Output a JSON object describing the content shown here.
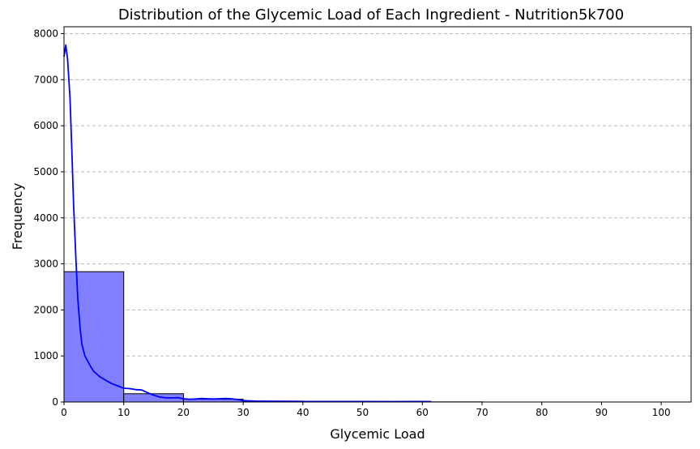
{
  "chart_data": {
    "type": "bar",
    "title": "Distribution of the Glycemic Load of Each Ingredient - Nutrition5k700",
    "xlabel": "Glycemic Load",
    "ylabel": "Frequency",
    "xlim": [
      0,
      105
    ],
    "ylim": [
      0,
      8150
    ],
    "x_ticks": [
      0,
      10,
      20,
      30,
      40,
      50,
      60,
      70,
      80,
      90,
      100
    ],
    "y_ticks": [
      0,
      1000,
      2000,
      3000,
      4000,
      5000,
      6000,
      7000,
      8000
    ],
    "grid": "y-dashed",
    "bins": [
      {
        "x0": 0,
        "x1": 10,
        "value": 2830
      },
      {
        "x0": 10,
        "x1": 20,
        "value": 180
      },
      {
        "x0": 20,
        "x1": 30,
        "value": 60
      },
      {
        "x0": 30,
        "x1": 40,
        "value": 20
      },
      {
        "x0": 40,
        "x1": 50,
        "value": 8
      },
      {
        "x0": 50,
        "x1": 60,
        "value": 5
      },
      {
        "x0": 60,
        "x1": 70,
        "value": 3
      }
    ],
    "kde": {
      "x": [
        0,
        0.3,
        0.6,
        1.0,
        1.3,
        1.6,
        2.0,
        2.3,
        2.7,
        3.0,
        3.5,
        4,
        4.5,
        5,
        6,
        7,
        8,
        9,
        10,
        11,
        12,
        13,
        14,
        15,
        16,
        17,
        18,
        19,
        20,
        21,
        22,
        23,
        24,
        25,
        26,
        27,
        28,
        29,
        30,
        32,
        35,
        40,
        45,
        50,
        55,
        60,
        61.5
      ],
      "y": [
        7500,
        7750,
        7450,
        6600,
        5500,
        4300,
        3100,
        2250,
        1600,
        1250,
        1000,
        880,
        760,
        660,
        550,
        470,
        400,
        350,
        300,
        290,
        270,
        260,
        200,
        150,
        110,
        90,
        90,
        95,
        70,
        60,
        65,
        75,
        70,
        65,
        70,
        75,
        70,
        55,
        30,
        20,
        15,
        10,
        10,
        10,
        8,
        10,
        8
      ]
    },
    "colors": {
      "bar_fill": "#8080ff",
      "bar_edge": "#000000",
      "kde_line": "#0000ff",
      "grid": "#bbbbbb"
    }
  }
}
